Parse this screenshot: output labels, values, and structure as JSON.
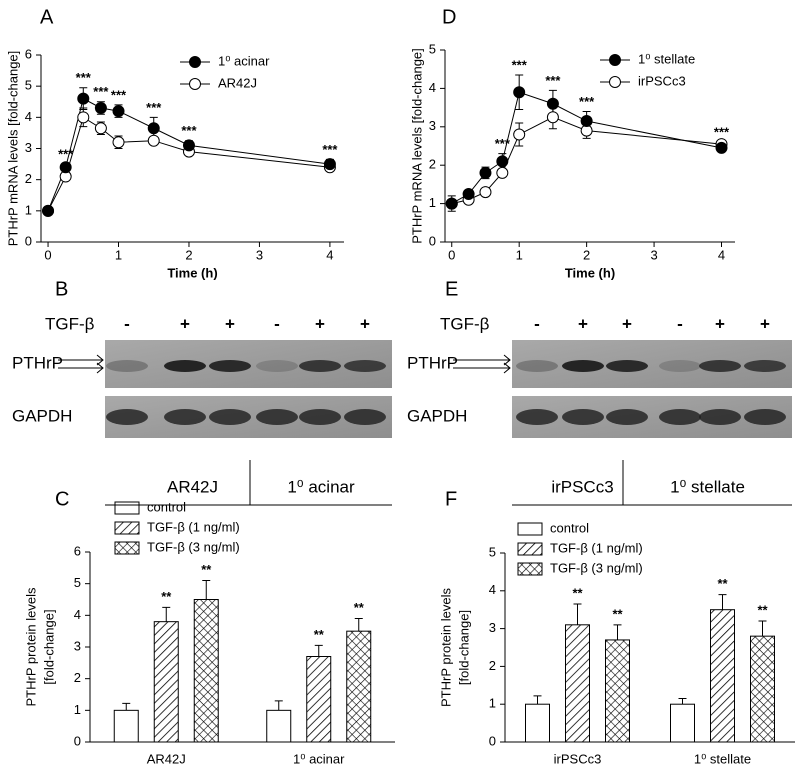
{
  "chart_data": [
    {
      "type": "line",
      "panel": "A",
      "xlabel": "Time (h)",
      "ylabel": "PTHrP mRNA levels [fold-change]",
      "x": [
        0,
        0.25,
        0.5,
        0.75,
        1,
        1.5,
        2,
        4
      ],
      "xlim": [
        -0.1,
        4.2
      ],
      "xticks": [
        0,
        1,
        2,
        3,
        4
      ],
      "ylim": [
        0,
        6
      ],
      "yticks": [
        0,
        1,
        2,
        3,
        4,
        5,
        6
      ],
      "legend": "top",
      "series": [
        {
          "name": "1⁰ acinar",
          "color": "#000000",
          "marker_fill": "#000000",
          "values": [
            1,
            2.4,
            4.6,
            4.3,
            4.2,
            3.65,
            3.1,
            2.5
          ],
          "errors": [
            0.05,
            0.1,
            0.35,
            0.2,
            0.2,
            0.35,
            0.15,
            0.15
          ]
        },
        {
          "name": "AR42J",
          "color": "#000000",
          "marker_fill": "#ffffff",
          "values": [
            1,
            2.1,
            4.0,
            3.65,
            3.2,
            3.25,
            2.9,
            2.4
          ],
          "errors": [
            0.05,
            0.1,
            0.3,
            0.2,
            0.2,
            0.1,
            0.1,
            0.1
          ]
        }
      ],
      "significance": [
        null,
        "***",
        "***",
        "***",
        "***",
        "***",
        "***",
        "***"
      ]
    },
    {
      "type": "line",
      "panel": "D",
      "xlabel": "Time (h)",
      "ylabel": "PTHrP mRNA levels [fold-change]",
      "x": [
        0,
        0.25,
        0.5,
        0.75,
        1,
        1.5,
        2,
        4
      ],
      "xlim": [
        -0.1,
        4.2
      ],
      "xticks": [
        0,
        1,
        2,
        3,
        4
      ],
      "ylim": [
        0,
        5
      ],
      "yticks": [
        0,
        1,
        2,
        3,
        4,
        5
      ],
      "legend": "top",
      "series": [
        {
          "name": "1⁰ stellate",
          "color": "#000000",
          "marker_fill": "#000000",
          "values": [
            1,
            1.25,
            1.8,
            2.1,
            3.9,
            3.6,
            3.15,
            2.45
          ],
          "errors": [
            0.2,
            0.1,
            0.15,
            0.2,
            0.45,
            0.35,
            0.25,
            0.05
          ]
        },
        {
          "name": "irPSCc3",
          "color": "#000000",
          "marker_fill": "#ffffff",
          "values": [
            1,
            1.1,
            1.3,
            1.8,
            2.8,
            3.25,
            2.9,
            2.55
          ],
          "errors": [
            0.1,
            0.1,
            0.1,
            0.1,
            0.3,
            0.3,
            0.2,
            0.05
          ]
        }
      ],
      "significance": [
        null,
        null,
        null,
        "***",
        "***",
        "***",
        "***",
        "***"
      ]
    },
    {
      "type": "bar",
      "panel": "C",
      "ylabel": [
        "PTHrP protein levels",
        "[fold-change]"
      ],
      "categories": [
        "AR42J",
        "1⁰ acinar"
      ],
      "ylim": [
        0,
        6
      ],
      "yticks": [
        0,
        1,
        2,
        3,
        4,
        5,
        6
      ],
      "legend": "top left",
      "series": [
        {
          "name": "control",
          "color": "#000000",
          "pattern": "none",
          "values": [
            1,
            1
          ],
          "errors": [
            0.22,
            0.3
          ],
          "significance": [
            null,
            null
          ]
        },
        {
          "name": "TGF-β (1 ng/ml)",
          "color": "#000000",
          "pattern": "hatch",
          "values": [
            3.8,
            2.7
          ],
          "errors": [
            0.45,
            0.35
          ],
          "significance": [
            "**",
            "**"
          ]
        },
        {
          "name": "TGF-β (3 ng/ml)",
          "color": "#000000",
          "pattern": "crosshatch",
          "values": [
            4.5,
            3.5
          ],
          "errors": [
            0.6,
            0.4
          ],
          "significance": [
            "**",
            "**"
          ]
        }
      ]
    },
    {
      "type": "bar",
      "panel": "F",
      "ylabel": [
        "PTHrP protein levels",
        "[fold-change]"
      ],
      "categories": [
        "irPSCc3",
        "1⁰ stellate"
      ],
      "ylim": [
        0,
        5
      ],
      "yticks": [
        0,
        1,
        2,
        3,
        4,
        5
      ],
      "legend": "top left",
      "series": [
        {
          "name": "control",
          "color": "#000000",
          "pattern": "none",
          "values": [
            1,
            1
          ],
          "errors": [
            0.22,
            0.15
          ],
          "significance": [
            null,
            null
          ]
        },
        {
          "name": "TGF-β (1 ng/ml)",
          "color": "#000000",
          "pattern": "hatch",
          "values": [
            3.1,
            3.5
          ],
          "errors": [
            0.55,
            0.4
          ],
          "significance": [
            "**",
            "**"
          ]
        },
        {
          "name": "TGF-β (3 ng/ml)",
          "color": "#000000",
          "pattern": "crosshatch",
          "values": [
            2.7,
            2.8
          ],
          "errors": [
            0.4,
            0.4
          ],
          "significance": [
            "**",
            "**"
          ]
        }
      ]
    }
  ],
  "blots": [
    {
      "panel": "B",
      "treatment_label": "TGF-β",
      "treatments": [
        "-",
        "+",
        "+",
        "-",
        "+",
        "+"
      ],
      "rows": [
        "PTHrP",
        "GAPDH"
      ],
      "groups": [
        "AR42J",
        "1⁰ acinar"
      ]
    },
    {
      "panel": "E",
      "treatment_label": "TGF-β",
      "treatments": [
        "-",
        "+",
        "+",
        "-",
        "+",
        "+"
      ],
      "rows": [
        "PTHrP",
        "GAPDH"
      ],
      "groups": [
        "irPSCc3",
        "1⁰ stellate"
      ]
    }
  ]
}
